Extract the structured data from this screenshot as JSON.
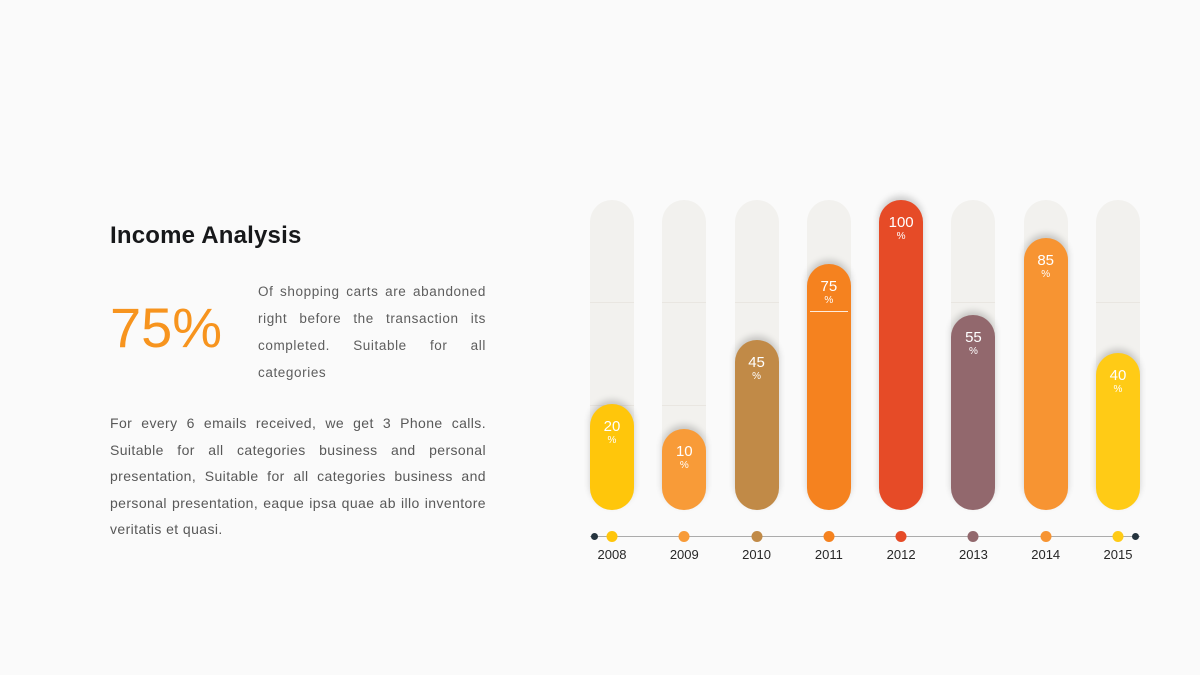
{
  "slide": {
    "background": "#FAFAFA"
  },
  "content": {
    "title": "Income Analysis",
    "stat_value": "75%",
    "stat_description": "Of shopping carts are abandoned right before the transaction its completed. Suitable for all categories",
    "body_text": "For every 6 emails received, we get 3 Phone calls. Suitable for all categories business and personal presentation, Suitable for all categories business and personal presentation, eaque ipsa quae ab illo inventore veritatis et quasi."
  },
  "chart_data": {
    "type": "bar",
    "title": "Income Analysis",
    "categories": [
      "2008",
      "2009",
      "2010",
      "2011",
      "2012",
      "2013",
      "2014",
      "2015"
    ],
    "values": [
      20,
      10,
      45,
      75,
      100,
      55,
      85,
      40
    ],
    "unit": "%",
    "colors": [
      "#FFC60B",
      "#F89B38",
      "#C18A47",
      "#F5821F",
      "#E64B27",
      "#92686D",
      "#F79432",
      "#FFCB16"
    ],
    "ylim": [
      0,
      100
    ],
    "grid": false,
    "legend": "none",
    "track_color": "#F2F1EE",
    "axis_line_color": "#ABABAB",
    "axis_end_dot_color": "#24333E",
    "highlight_rule_index": 3
  }
}
